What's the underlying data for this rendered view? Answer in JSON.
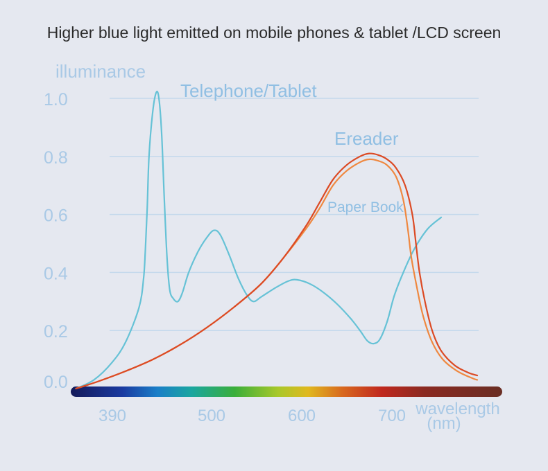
{
  "chart_data": {
    "type": "line",
    "title": "Higher blue light emitted on mobile phones & tablet /LCD screen",
    "ylabel": "illuminance",
    "xlabel_line1": "wavelength",
    "xlabel_line2": "(nm)",
    "ylim": [
      0,
      1.0
    ],
    "yticks": [
      "1.0",
      "0.8",
      "0.6",
      "0.4",
      "0.2",
      "0.0"
    ],
    "ytick_values": [
      1.0,
      0.8,
      0.6,
      0.4,
      0.2,
      0.0
    ],
    "xticks": [
      "390",
      "500",
      "600",
      "700"
    ],
    "xtick_values": [
      390,
      500,
      600,
      700
    ],
    "grid": true,
    "spectrum_bar": true,
    "colors": {
      "telephone": "#66c2d6",
      "ereader": "#dc4a24",
      "paper": "#ef8840",
      "axis_text": "#a9c9e6",
      "grid": "#c3d8ec",
      "title": "#2b2b2b"
    },
    "series": [
      {
        "name": "Telephone/Tablet",
        "color": "#66c2d6",
        "points": [
          [
            355,
            0.0
          ],
          [
            375,
            0.03
          ],
          [
            395,
            0.09
          ],
          [
            410,
            0.16
          ],
          [
            425,
            0.28
          ],
          [
            430,
            0.38
          ],
          [
            432,
            0.48
          ],
          [
            434,
            0.62
          ],
          [
            436,
            0.8
          ],
          [
            440,
            0.95
          ],
          [
            444,
            1.02
          ],
          [
            447,
            1.0
          ],
          [
            450,
            0.88
          ],
          [
            453,
            0.65
          ],
          [
            456,
            0.45
          ],
          [
            459,
            0.34
          ],
          [
            463,
            0.31
          ],
          [
            468,
            0.3
          ],
          [
            473,
            0.33
          ],
          [
            480,
            0.4
          ],
          [
            490,
            0.47
          ],
          [
            500,
            0.52
          ],
          [
            508,
            0.545
          ],
          [
            515,
            0.53
          ],
          [
            525,
            0.46
          ],
          [
            535,
            0.38
          ],
          [
            545,
            0.32
          ],
          [
            552,
            0.3
          ],
          [
            560,
            0.315
          ],
          [
            575,
            0.345
          ],
          [
            590,
            0.37
          ],
          [
            600,
            0.375
          ],
          [
            615,
            0.36
          ],
          [
            630,
            0.33
          ],
          [
            645,
            0.29
          ],
          [
            660,
            0.24
          ],
          [
            670,
            0.2
          ],
          [
            678,
            0.165
          ],
          [
            685,
            0.155
          ],
          [
            692,
            0.17
          ],
          [
            700,
            0.23
          ],
          [
            708,
            0.32
          ],
          [
            718,
            0.4
          ],
          [
            730,
            0.48
          ],
          [
            745,
            0.55
          ],
          [
            760,
            0.59
          ]
        ]
      },
      {
        "name": "Ereader",
        "color": "#dc4a24",
        "points": [
          [
            355,
            0.0
          ],
          [
            380,
            0.025
          ],
          [
            410,
            0.06
          ],
          [
            440,
            0.1
          ],
          [
            470,
            0.15
          ],
          [
            500,
            0.21
          ],
          [
            530,
            0.28
          ],
          [
            560,
            0.36
          ],
          [
            585,
            0.45
          ],
          [
            610,
            0.56
          ],
          [
            625,
            0.64
          ],
          [
            640,
            0.72
          ],
          [
            655,
            0.77
          ],
          [
            670,
            0.8
          ],
          [
            680,
            0.81
          ],
          [
            690,
            0.805
          ],
          [
            700,
            0.79
          ],
          [
            710,
            0.76
          ],
          [
            720,
            0.7
          ],
          [
            728,
            0.6
          ],
          [
            732,
            0.5
          ],
          [
            736,
            0.4
          ],
          [
            742,
            0.3
          ],
          [
            750,
            0.2
          ],
          [
            760,
            0.13
          ],
          [
            775,
            0.08
          ],
          [
            790,
            0.055
          ],
          [
            800,
            0.045
          ]
        ]
      },
      {
        "name": "Paper Book",
        "color": "#ef8840",
        "points": [
          [
            355,
            0.0
          ],
          [
            380,
            0.025
          ],
          [
            410,
            0.06
          ],
          [
            440,
            0.1
          ],
          [
            470,
            0.15
          ],
          [
            500,
            0.21
          ],
          [
            530,
            0.28
          ],
          [
            560,
            0.36
          ],
          [
            585,
            0.45
          ],
          [
            610,
            0.55
          ],
          [
            625,
            0.62
          ],
          [
            640,
            0.7
          ],
          [
            655,
            0.75
          ],
          [
            670,
            0.78
          ],
          [
            680,
            0.79
          ],
          [
            690,
            0.785
          ],
          [
            700,
            0.77
          ],
          [
            710,
            0.73
          ],
          [
            718,
            0.65
          ],
          [
            723,
            0.55
          ],
          [
            727,
            0.45
          ],
          [
            733,
            0.35
          ],
          [
            740,
            0.25
          ],
          [
            750,
            0.16
          ],
          [
            762,
            0.1
          ],
          [
            778,
            0.06
          ],
          [
            795,
            0.035
          ],
          [
            800,
            0.03
          ]
        ]
      }
    ]
  }
}
